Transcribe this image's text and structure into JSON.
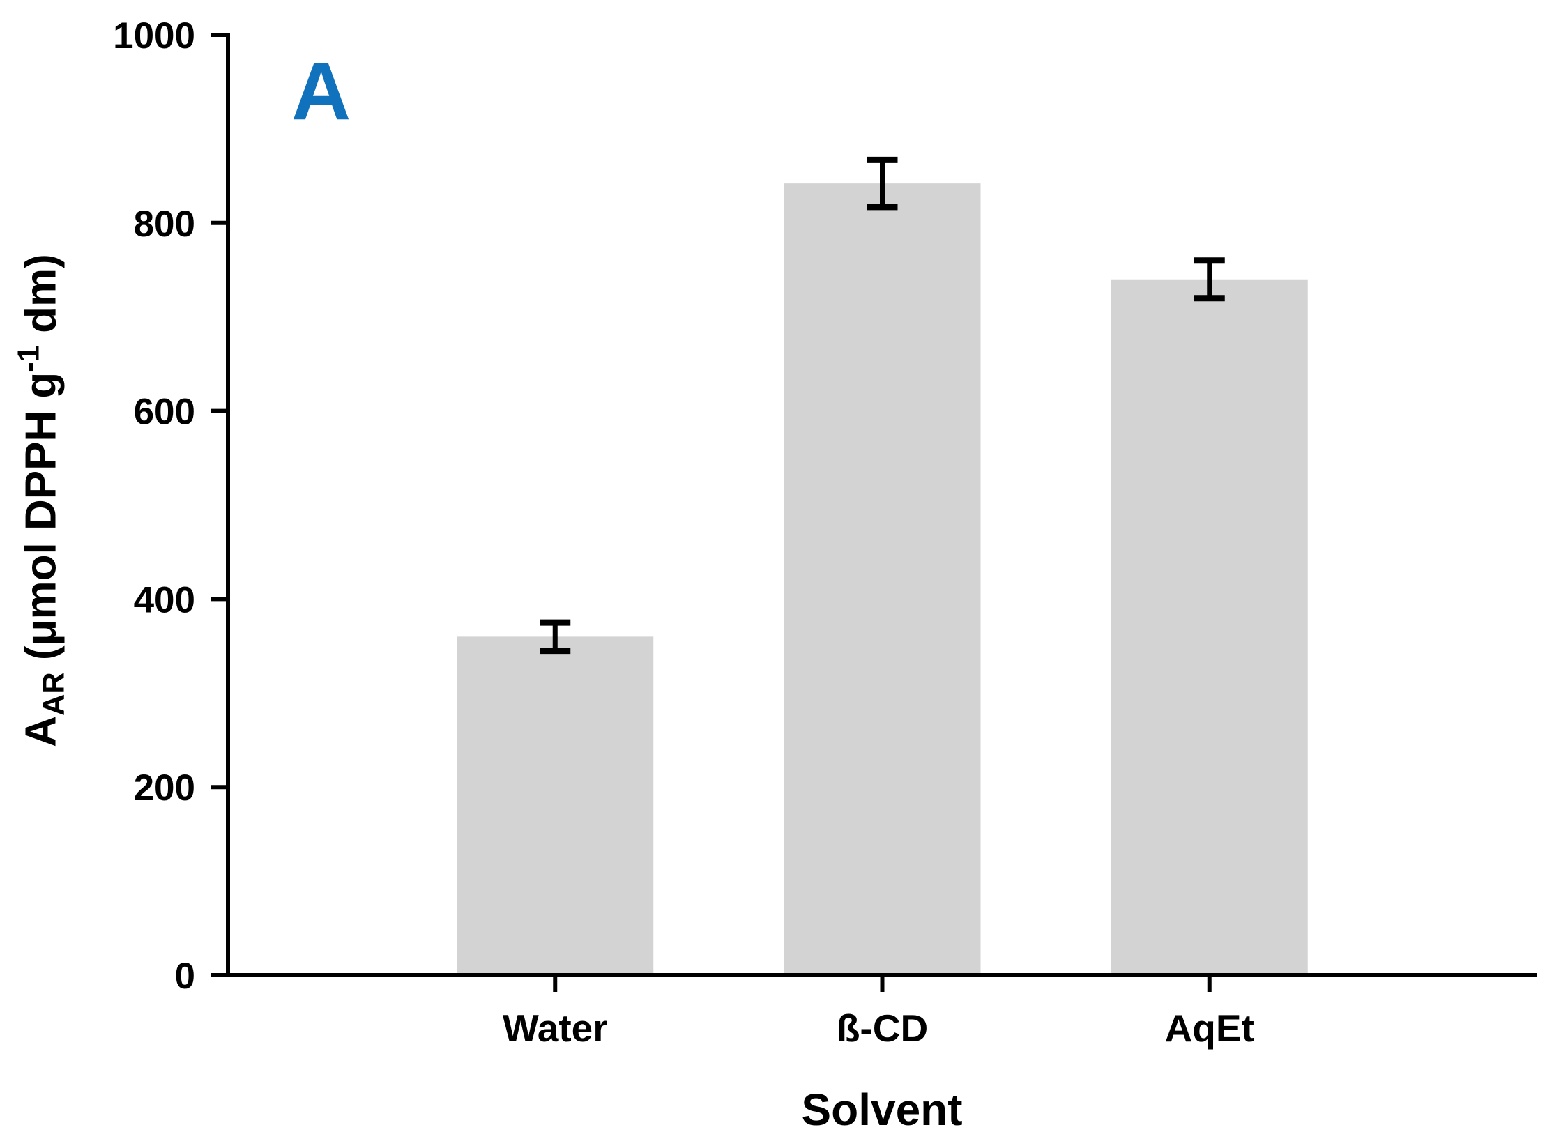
{
  "figure": {
    "panel_label": "A",
    "panel_label_color": "#1071BC",
    "background_color": "#FFFFFF"
  },
  "chart_data": {
    "type": "bar",
    "categories": [
      "Water",
      "ß-CD",
      "AqEt"
    ],
    "values": [
      360,
      842,
      740
    ],
    "errors": [
      15,
      25,
      20
    ],
    "xlabel": "Solvent",
    "ylabel": "AAR (μmol DPPH g-1 dm)",
    "ylabel_parts": [
      {
        "text": "A"
      },
      {
        "text": "AR",
        "style": "sub"
      },
      {
        "text": " (μmol DPPH g",
        "style": "text"
      },
      {
        "text": "-1",
        "style": "sup"
      },
      {
        "text": " dm)",
        "style": "text"
      }
    ],
    "ylim": [
      0,
      1000
    ],
    "yticks": [
      0,
      200,
      400,
      600,
      800,
      1000
    ],
    "bar_color": "#D3D3D3",
    "axis_color": "#000000",
    "error_bar_color": "#000000",
    "grid": false,
    "legend": false
  }
}
